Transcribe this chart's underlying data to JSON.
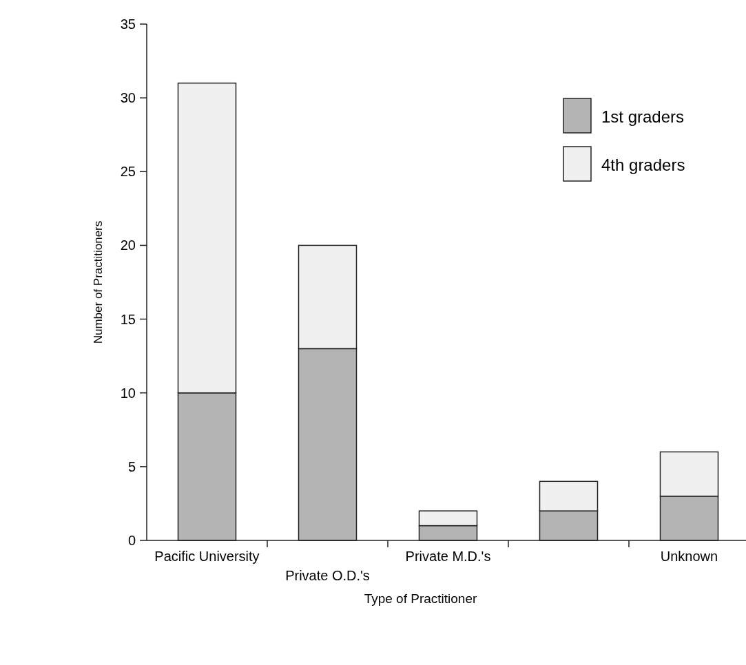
{
  "chart_data": {
    "type": "bar",
    "stacked": true,
    "xlabel": "Type of Practitioner",
    "ylabel": "Number of Practitioners",
    "categories": [
      "Pacific University",
      "Private O.D.'s",
      "Private M.D.'s",
      null,
      "Unknown"
    ],
    "series": [
      {
        "name": "1st graders",
        "color": "#b4b4b4",
        "values": [
          10,
          13,
          1,
          2,
          3
        ]
      },
      {
        "name": "4th graders",
        "color": "#f0f0f0",
        "values": [
          21,
          7,
          1,
          2,
          3
        ]
      }
    ],
    "ylim": [
      0,
      35
    ],
    "yticks": [
      0,
      5,
      10,
      15,
      20,
      25,
      30,
      35
    ],
    "legend": "top right",
    "grid": false
  }
}
